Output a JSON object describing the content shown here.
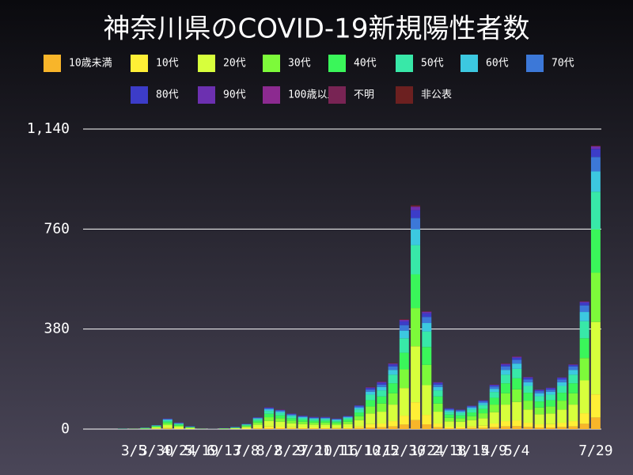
{
  "chart_data": {
    "type": "stacked_bar",
    "title": "神奈川県のCOVID-19新規陽性者数",
    "categories": [
      null,
      null,
      null,
      null,
      "3/5",
      null,
      "3/30",
      null,
      "4/24",
      null,
      "5/19",
      null,
      "6/13",
      null,
      "7/8",
      null,
      "8/2",
      null,
      "8/27",
      null,
      "9/21",
      null,
      "10/16",
      null,
      "11/10",
      null,
      "12/5",
      null,
      "12/30",
      null,
      "1/24",
      null,
      "2/18",
      null,
      "3/15",
      null,
      "4/9",
      null,
      "5/4",
      null,
      null,
      null,
      null,
      null,
      null,
      "7/29"
    ],
    "ylim": [
      0,
      1140
    ],
    "yticks": [
      0,
      380,
      760,
      {
        "value": 1140,
        "label": "1,140"
      }
    ],
    "grid": true,
    "series": [
      {
        "name": "10歳未満",
        "color": "#f8b52a",
        "values": [
          0,
          0,
          0,
          0,
          0,
          0,
          1,
          2,
          1,
          0,
          0,
          0,
          0,
          0,
          1,
          2,
          3,
          3,
          2,
          2,
          2,
          2,
          2,
          2,
          4,
          6,
          7,
          10,
          17,
          34,
          18,
          7,
          3,
          3,
          4,
          4,
          7,
          10,
          11,
          8,
          6,
          6,
          8,
          10,
          20,
          44
        ]
      },
      {
        "name": "10代",
        "color": "#ffef36",
        "values": [
          0,
          0,
          0,
          0,
          0,
          0,
          1,
          3,
          2,
          1,
          0,
          0,
          0,
          1,
          2,
          4,
          7,
          6,
          5,
          4,
          4,
          4,
          3,
          4,
          7,
          13,
          14,
          20,
          34,
          68,
          36,
          14,
          6,
          6,
          7,
          9,
          14,
          20,
          22,
          16,
          12,
          13,
          16,
          20,
          40,
          88
        ]
      },
      {
        "name": "20代",
        "color": "#d7ff3c",
        "values": [
          0,
          0,
          0,
          0,
          1,
          1,
          4,
          10,
          6,
          3,
          1,
          1,
          1,
          2,
          5,
          11,
          21,
          19,
          15,
          13,
          11,
          11,
          10,
          13,
          23,
          40,
          45,
          63,
          105,
          213,
          113,
          45,
          20,
          19,
          23,
          28,
          43,
          63,
          70,
          50,
          38,
          40,
          50,
          63,
          125,
          275
        ]
      },
      {
        "name": "30代",
        "color": "#7dfa3a",
        "values": [
          0,
          0,
          0,
          0,
          1,
          1,
          3,
          7,
          4,
          2,
          1,
          0,
          1,
          1,
          3,
          8,
          14,
          13,
          10,
          9,
          8,
          8,
          7,
          9,
          15,
          27,
          31,
          43,
          71,
          145,
          77,
          31,
          14,
          13,
          15,
          19,
          29,
          43,
          48,
          34,
          26,
          27,
          34,
          43,
          85,
          187
        ]
      },
      {
        "name": "40代",
        "color": "#3af65a",
        "values": [
          0,
          0,
          0,
          0,
          0,
          1,
          2,
          6,
          4,
          1,
          0,
          0,
          1,
          1,
          3,
          7,
          13,
          11,
          9,
          8,
          7,
          7,
          6,
          8,
          14,
          24,
          27,
          38,
          63,
          128,
          68,
          27,
          12,
          11,
          14,
          17,
          26,
          38,
          42,
          30,
          23,
          24,
          30,
          38,
          75,
          165
        ]
      },
      {
        "name": "50代",
        "color": "#38e8a8",
        "values": [
          0,
          0,
          0,
          1,
          0,
          1,
          2,
          5,
          3,
          1,
          0,
          0,
          0,
          1,
          3,
          6,
          11,
          10,
          8,
          6,
          6,
          6,
          5,
          6,
          12,
          21,
          23,
          33,
          55,
          111,
          59,
          23,
          10,
          10,
          12,
          14,
          22,
          33,
          36,
          26,
          20,
          21,
          26,
          33,
          65,
          143
        ]
      },
      {
        "name": "60代",
        "color": "#3cc8e0",
        "values": [
          0,
          0,
          0,
          0,
          0,
          1,
          1,
          3,
          2,
          1,
          0,
          0,
          0,
          1,
          1,
          3,
          6,
          5,
          4,
          4,
          3,
          3,
          3,
          3,
          6,
          11,
          13,
          18,
          29,
          60,
          32,
          13,
          6,
          5,
          6,
          8,
          12,
          18,
          20,
          14,
          11,
          11,
          14,
          18,
          35,
          77
        ]
      },
      {
        "name": "70代",
        "color": "#3c78d8",
        "values": [
          0,
          0,
          0,
          0,
          0,
          0,
          1,
          2,
          1,
          1,
          0,
          0,
          0,
          1,
          1,
          2,
          4,
          4,
          3,
          2,
          2,
          2,
          2,
          3,
          5,
          8,
          9,
          13,
          21,
          43,
          23,
          9,
          4,
          4,
          5,
          6,
          9,
          13,
          14,
          10,
          8,
          8,
          10,
          13,
          25,
          55
        ]
      },
      {
        "name": "80代",
        "color": "#3c3cc8",
        "values": [
          0,
          0,
          0,
          0,
          1,
          0,
          0,
          1,
          1,
          1,
          1,
          1,
          1,
          1,
          1,
          1,
          3,
          2,
          2,
          2,
          2,
          2,
          1,
          1,
          3,
          6,
          7,
          8,
          14,
          30,
          14,
          6,
          3,
          2,
          2,
          3,
          5,
          7,
          8,
          7,
          4,
          5,
          6,
          6,
          10,
          30
        ]
      },
      {
        "name": "90代",
        "color": "#6c30b0",
        "values": [
          0,
          0,
          0,
          0,
          0,
          0,
          0,
          1,
          1,
          0,
          0,
          0,
          0,
          0,
          0,
          1,
          1,
          1,
          1,
          1,
          1,
          1,
          1,
          1,
          1,
          2,
          3,
          3,
          6,
          12,
          6,
          3,
          1,
          1,
          1,
          1,
          2,
          3,
          4,
          3,
          2,
          2,
          2,
          2,
          4,
          10
        ]
      },
      {
        "name": "100歳以上",
        "color": "#8c2a90",
        "values": [
          0,
          0,
          0,
          0,
          0,
          0,
          0,
          0,
          0,
          0,
          0,
          0,
          0,
          0,
          0,
          0,
          0,
          0,
          0,
          0,
          0,
          0,
          0,
          0,
          0,
          0,
          0,
          0,
          0,
          1,
          0,
          0,
          0,
          0,
          0,
          0,
          0,
          0,
          0,
          0,
          0,
          0,
          0,
          0,
          0,
          0
        ]
      },
      {
        "name": "不明",
        "color": "#782454",
        "values": [
          0,
          0,
          0,
          0,
          0,
          0,
          0,
          0,
          0,
          0,
          0,
          0,
          0,
          0,
          0,
          0,
          0,
          0,
          0,
          0,
          0,
          0,
          0,
          0,
          0,
          1,
          1,
          1,
          1,
          2,
          1,
          0,
          0,
          0,
          0,
          0,
          0,
          1,
          1,
          0,
          0,
          0,
          0,
          0,
          1,
          1
        ]
      },
      {
        "name": "非公表",
        "color": "#6c2020",
        "values": [
          0,
          0,
          0,
          0,
          0,
          0,
          0,
          0,
          0,
          0,
          0,
          0,
          0,
          0,
          0,
          0,
          1,
          1,
          0,
          0,
          0,
          0,
          0,
          0,
          0,
          1,
          1,
          1,
          2,
          3,
          1,
          0,
          0,
          0,
          0,
          0,
          1,
          1,
          1,
          1,
          0,
          0,
          0,
          1,
          1,
          2
        ]
      }
    ]
  }
}
